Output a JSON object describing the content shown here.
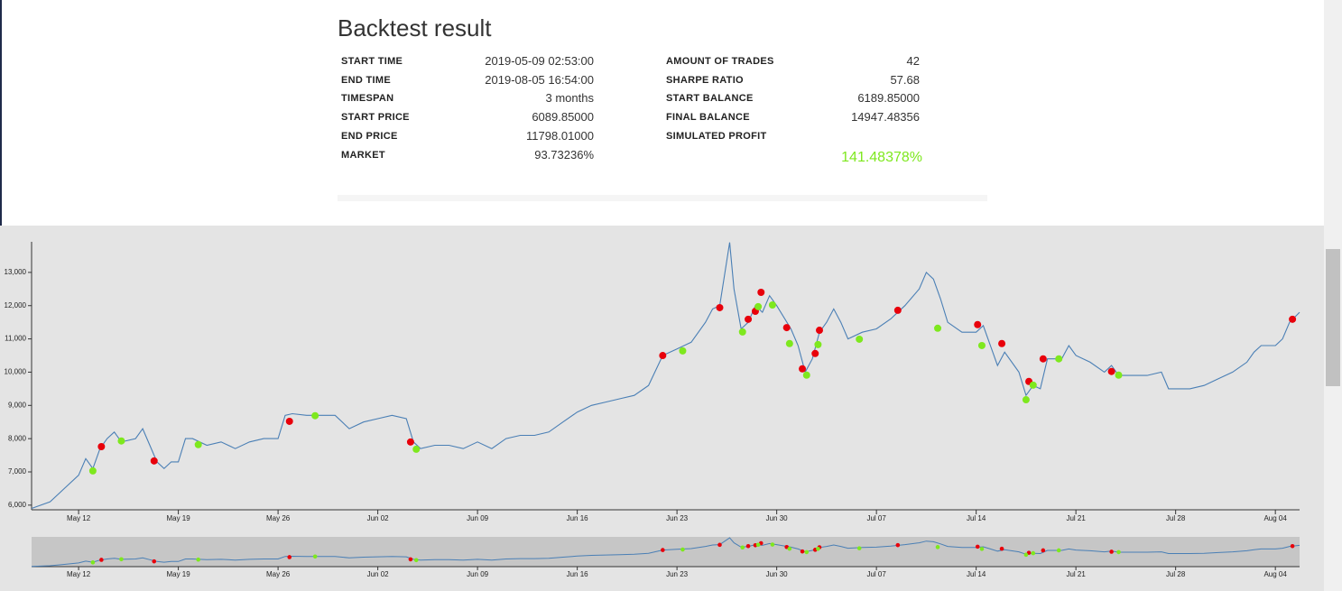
{
  "header": {
    "title": "Backtest result"
  },
  "stats": {
    "left": [
      [
        "START TIME",
        "2019-05-09 02:53:00"
      ],
      [
        "END TIME",
        "2019-08-05 16:54:00"
      ],
      [
        "TIMESPAN",
        "3 months"
      ],
      [
        "START PRICE",
        "6089.85000"
      ],
      [
        "END PRICE",
        "11798.01000"
      ],
      [
        "MARKET",
        "93.73236%"
      ]
    ],
    "right": [
      [
        "AMOUNT OF TRADES",
        "42"
      ],
      [
        "SHARPE RATIO",
        "57.68"
      ],
      [
        "START BALANCE",
        "6189.85000"
      ],
      [
        "FINAL BALANCE",
        "14947.48356"
      ],
      [
        "SIMULATED PROFIT",
        "141.48378%"
      ]
    ]
  },
  "chart_data": {
    "type": "line",
    "color": "#4a7fb5",
    "x": [
      8.7,
      10,
      11,
      12,
      12.5,
      13,
      13.5,
      14,
      14.5,
      15,
      16,
      16.5,
      17,
      17.5,
      18,
      18.5,
      19,
      19.5,
      20,
      21,
      22,
      23,
      24,
      25,
      26,
      26.5,
      27,
      28,
      29,
      30,
      31,
      32,
      33,
      34,
      35,
      35.5,
      36,
      37,
      38,
      39,
      40,
      41,
      42,
      43,
      44,
      45,
      46,
      47,
      48,
      49,
      50,
      51,
      52,
      53,
      54,
      55,
      56,
      56.5,
      57,
      57.7,
      58,
      58.5,
      59,
      59.5,
      60,
      60.5,
      61,
      62,
      62.5,
      63,
      63.5,
      64,
      64.5,
      65,
      65.5,
      66,
      67,
      68,
      69,
      70,
      71,
      71.5,
      72,
      72.5,
      73,
      74,
      75,
      75.5,
      76,
      76.5,
      77,
      78,
      78.5,
      79,
      79.5,
      80,
      81,
      81.5,
      82,
      83,
      84,
      84.5,
      85,
      86,
      87,
      88,
      88.5,
      89,
      90,
      91,
      92,
      93,
      94,
      94.5,
      95,
      96,
      96.5,
      97,
      97.7
    ],
    "values": [
      5900,
      6100,
      6500,
      6900,
      7400,
      7100,
      7700,
      8000,
      8200,
      7900,
      8000,
      8300,
      7800,
      7300,
      7100,
      7300,
      7300,
      8000,
      8000,
      7800,
      7900,
      7700,
      7900,
      8000,
      8000,
      8700,
      8750,
      8700,
      8700,
      8700,
      8300,
      8500,
      8600,
      8700,
      8600,
      7900,
      7700,
      7800,
      7800,
      7700,
      7900,
      7700,
      8000,
      8100,
      8100,
      8200,
      8500,
      8800,
      9000,
      9100,
      9200,
      9300,
      9600,
      10500,
      10700,
      10900,
      11500,
      11900,
      12000,
      13900,
      12500,
      11300,
      11500,
      12000,
      11800,
      12300,
      12000,
      11300,
      10800,
      10000,
      10400,
      11200,
      11500,
      11900,
      11500,
      11000,
      11200,
      11300,
      11600,
      12000,
      12500,
      13000,
      12800,
      12200,
      11500,
      11200,
      11200,
      11400,
      10800,
      10200,
      10600,
      10000,
      9300,
      9600,
      9500,
      10400,
      10400,
      10800,
      10500,
      10300,
      10000,
      10200,
      9900,
      9900,
      9900,
      10000,
      9500,
      9500,
      9500,
      9600,
      9800,
      10000,
      10300,
      10600,
      10800,
      10800,
      11000,
      11500,
      11800
    ],
    "markers": [
      {
        "color": "#e8000b",
        "x": [
          13.6,
          17.3,
          26.8,
          35.3,
          53.0,
          57.0,
          59.0,
          59.5,
          59.9,
          61.7,
          62.8,
          63.7,
          64.0,
          69.5,
          75.1,
          76.8,
          78.7,
          79.7,
          84.5,
          97.2
        ],
        "values": [
          7760,
          7330,
          8520,
          7900,
          10500,
          11940,
          11590,
          11830,
          12400,
          11340,
          10100,
          10560,
          11260,
          11860,
          11430,
          10860,
          9720,
          10400,
          10020,
          11590
        ]
      },
      {
        "color": "#7ee81e",
        "x": [
          13.0,
          15.0,
          20.4,
          28.6,
          35.7,
          54.4,
          58.6,
          59.7,
          60.7,
          61.9,
          63.1,
          63.9,
          66.8,
          72.3,
          75.4,
          78.5,
          79.0,
          80.8,
          85.0
        ],
        "values": [
          7030,
          7930,
          7820,
          8690,
          7680,
          10640,
          11210,
          11970,
          12020,
          10860,
          9910,
          10830,
          10990,
          11320,
          10800,
          9170,
          9610,
          10400,
          9910
        ]
      }
    ],
    "xlim": [
      8.7,
      97.7
    ],
    "xticks": [
      {
        "value": 12,
        "label": "May 12"
      },
      {
        "value": 19,
        "label": "May 19"
      },
      {
        "value": 26,
        "label": "May 26"
      },
      {
        "value": 33,
        "label": "Jun 02"
      },
      {
        "value": 40,
        "label": "Jun 09"
      },
      {
        "value": 47,
        "label": "Jun 16"
      },
      {
        "value": 54,
        "label": "Jun 23"
      },
      {
        "value": 61,
        "label": "Jun 30"
      },
      {
        "value": 68,
        "label": "Jul 07"
      },
      {
        "value": 75,
        "label": "Jul 14"
      },
      {
        "value": 82,
        "label": "Jul 21"
      },
      {
        "value": 89,
        "label": "Jul 28"
      },
      {
        "value": 96,
        "label": "Aug 04"
      }
    ],
    "ylim": [
      5860,
      13920
    ],
    "yticks": [
      {
        "value": 6000,
        "label": "6,000"
      },
      {
        "value": 7000,
        "label": "7,000"
      },
      {
        "value": 8000,
        "label": "8,000"
      },
      {
        "value": 9000,
        "label": "9,000"
      },
      {
        "value": 10000,
        "label": "10,000"
      },
      {
        "value": 11000,
        "label": "11,000"
      },
      {
        "value": 12000,
        "label": "12,000"
      },
      {
        "value": 13000,
        "label": "13,000"
      }
    ]
  }
}
